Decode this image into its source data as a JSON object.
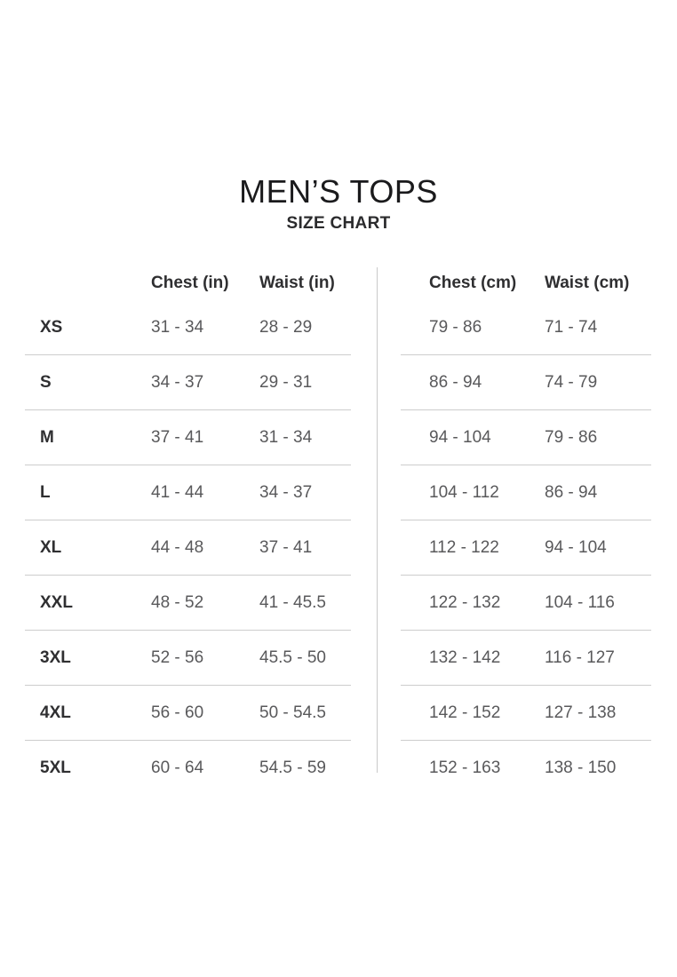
{
  "page": {
    "title": "MEN’S TOPS",
    "subtitle": "SIZE CHART"
  },
  "colors": {
    "heading_text": "#2f2f31",
    "value_text": "#59595b",
    "divider": "#c9c9c9",
    "background": "#ffffff"
  },
  "tables": {
    "inches": {
      "headers": {
        "chest": "Chest (in)",
        "waist": "Waist (in)"
      },
      "rows": [
        {
          "size": "XS",
          "chest": "31 - 34",
          "waist": "28 - 29"
        },
        {
          "size": "S",
          "chest": "34 - 37",
          "waist": "29 - 31"
        },
        {
          "size": "M",
          "chest": "37 - 41",
          "waist": "31 - 34"
        },
        {
          "size": "L",
          "chest": "41 - 44",
          "waist": "34 - 37"
        },
        {
          "size": "XL",
          "chest": "44 - 48",
          "waist": "37 - 41"
        },
        {
          "size": "XXL",
          "chest": "48 - 52",
          "waist": "41 - 45.5"
        },
        {
          "size": "3XL",
          "chest": "52 - 56",
          "waist": "45.5 - 50"
        },
        {
          "size": "4XL",
          "chest": "56 - 60",
          "waist": "50 - 54.5"
        },
        {
          "size": "5XL",
          "chest": "60 - 64",
          "waist": "54.5 - 59"
        }
      ]
    },
    "cm": {
      "headers": {
        "chest": "Chest (cm)",
        "waist": "Waist (cm)"
      },
      "rows": [
        {
          "chest": "79 - 86",
          "waist": "71 - 74"
        },
        {
          "chest": "86 - 94",
          "waist": "74 - 79"
        },
        {
          "chest": "94 - 104",
          "waist": "79 - 86"
        },
        {
          "chest": "104 - 112",
          "waist": "86 - 94"
        },
        {
          "chest": "112 - 122",
          "waist": "94 - 104"
        },
        {
          "chest": "122 - 132",
          "waist": "104 - 116"
        },
        {
          "chest": "132 - 142",
          "waist": "116 - 127"
        },
        {
          "chest": "142 - 152",
          "waist": "127 - 138"
        },
        {
          "chest": "152 - 163",
          "waist": "138 - 150"
        }
      ]
    }
  }
}
